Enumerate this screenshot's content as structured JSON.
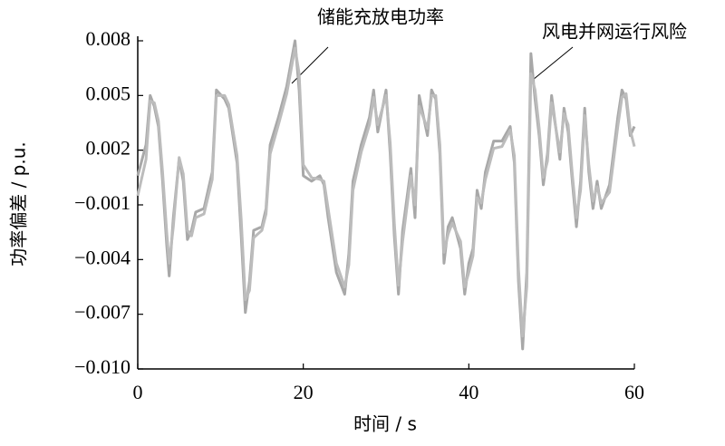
{
  "chart_data": {
    "type": "line",
    "xlabel": "时间 / s",
    "ylabel": "功率偏差 / p.u.",
    "x": [
      0,
      1,
      1.5,
      2,
      2.5,
      3,
      3.5,
      3.8,
      4.3,
      5,
      5.5,
      6,
      6.5,
      7,
      8,
      9,
      9.5,
      10.5,
      11,
      11.5,
      12,
      12.5,
      13,
      13.5,
      14,
      15,
      15.5,
      16,
      17,
      18,
      19,
      19.5,
      20,
      21,
      22,
      22.5,
      23,
      24,
      25,
      25.5,
      26,
      27,
      28,
      28.5,
      29,
      30,
      30.5,
      31,
      31.5,
      32,
      33,
      33.5,
      34,
      35,
      35.5,
      36,
      36.5,
      37,
      37.5,
      38,
      39,
      39.5,
      40,
      40.5,
      41,
      41.5,
      42,
      43,
      44,
      45,
      45.5,
      46,
      46.5,
      47,
      47.5,
      48,
      48.5,
      49,
      49.5,
      50,
      51,
      51.5,
      52,
      52.5,
      53,
      53.5,
      54,
      54.5,
      55,
      55.5,
      56,
      57,
      58,
      58.5,
      59,
      59.5,
      60
    ],
    "series": [
      {
        "name": "储能充放电功率",
        "color": "#a8a8a8",
        "values": [
          0.0006,
          0.0023,
          0.005,
          0.0044,
          0.0033,
          0.0003,
          -0.0032,
          -0.0049,
          -0.0017,
          0.0015,
          0.0003,
          -0.0029,
          -0.0024,
          -0.0014,
          -0.0012,
          0.0008,
          0.0053,
          0.0048,
          0.0043,
          0.0028,
          0.0013,
          -0.0027,
          -0.0069,
          -0.0052,
          -0.0024,
          -0.0022,
          -0.0012,
          0.0023,
          0.0038,
          0.0055,
          0.008,
          0.0053,
          0.0006,
          0.0003,
          0.0006,
          0.0001,
          -0.0017,
          -0.0047,
          -0.0059,
          -0.0037,
          0.0003,
          0.0023,
          0.0038,
          0.0053,
          0.003,
          0.0053,
          0.0018,
          -0.0027,
          -0.0059,
          -0.0024,
          0.001,
          -0.0017,
          0.005,
          0.0028,
          0.0053,
          0.0048,
          0.0018,
          -0.0042,
          -0.0022,
          -0.0017,
          -0.0034,
          -0.0059,
          -0.0042,
          -0.0034,
          -0.0002,
          -0.0012,
          0.0008,
          0.0025,
          0.0025,
          0.0033,
          0.0013,
          -0.0052,
          -0.0089,
          -0.0047,
          0.0073,
          0.0048,
          0.0028,
          0.0001,
          0.0018,
          0.005,
          0.0015,
          0.0043,
          0.003,
          0.0003,
          -0.0022,
          0.0003,
          0.0043,
          0.0008,
          -0.0012,
          0.0003,
          -0.0012,
          0.0001,
          0.0038,
          0.0053,
          0.0048,
          0.0028,
          0.0033
        ]
      },
      {
        "name": "风电并网运行风险",
        "color": "#bcbcbc",
        "values": [
          -0.0005,
          0.0015,
          0.0047,
          0.0046,
          0.0036,
          0.0008,
          -0.0025,
          -0.0042,
          -0.0022,
          0.0016,
          0.0007,
          -0.0024,
          -0.0027,
          -0.0017,
          -0.0015,
          0.0004,
          0.005,
          0.005,
          0.0045,
          0.0031,
          0.0017,
          -0.0018,
          -0.0062,
          -0.0057,
          -0.0028,
          -0.0024,
          -0.0015,
          0.0018,
          0.0034,
          0.0051,
          0.0076,
          0.0062,
          0.0012,
          0.0005,
          0.0004,
          0.0003,
          -0.0012,
          -0.0042,
          -0.0055,
          -0.0043,
          -0.0002,
          0.0019,
          0.0034,
          0.0049,
          0.0034,
          0.005,
          0.0024,
          -0.002,
          -0.0054,
          -0.003,
          0.0006,
          -0.001,
          0.0044,
          0.0032,
          0.005,
          0.005,
          0.0023,
          -0.0036,
          -0.0026,
          -0.002,
          -0.003,
          -0.0055,
          -0.0047,
          -0.0038,
          -0.0006,
          -0.0009,
          0.0004,
          0.0021,
          0.0022,
          0.0031,
          0.0017,
          -0.0045,
          -0.0082,
          -0.0055,
          0.0062,
          0.0053,
          0.0032,
          0.0005,
          0.0014,
          0.0046,
          0.0019,
          0.004,
          0.0034,
          0.0007,
          -0.0017,
          -0.0002,
          0.0039,
          0.0012,
          -0.0008,
          0,
          -0.0009,
          -0.0003,
          0.0033,
          0.0049,
          0.0051,
          0.0031,
          0.0022
        ]
      }
    ],
    "xlim": [
      0,
      60
    ],
    "xticks": [
      0,
      20,
      40,
      60
    ],
    "ylim": [
      -0.01,
      0.008
    ],
    "yticks": [
      {
        "value": -0.01,
        "label": "−0.010"
      },
      {
        "value": -0.007,
        "label": "−0.007"
      },
      {
        "value": -0.004,
        "label": "−0.004"
      },
      {
        "value": -0.001,
        "label": "−0.001"
      },
      0.002,
      0.005,
      0.008
    ],
    "grid": false
  }
}
